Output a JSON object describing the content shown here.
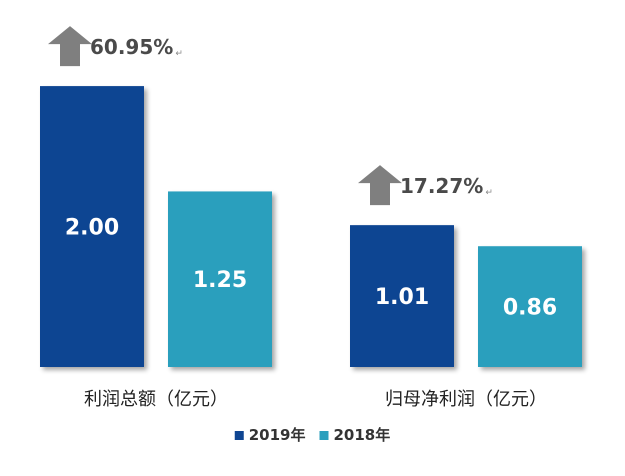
{
  "chart_data": {
    "type": "bar",
    "categories": [
      "利润总额（亿元）",
      "归母净利润（亿元）"
    ],
    "series": [
      {
        "name": "2019年",
        "values": [
          2.0,
          1.01
        ],
        "labels": [
          "2.00",
          "1.01"
        ],
        "color": "#0f4592"
      },
      {
        "name": "2018年",
        "values": [
          1.25,
          0.86
        ],
        "labels": [
          "1.25",
          "0.86"
        ],
        "color": "#2b9fbd"
      }
    ],
    "growth": [
      "60.95%",
      "17.27%"
    ],
    "paragraph_mark": "↵",
    "ylim": [
      0,
      2.2
    ],
    "legend_position": "bottom-center",
    "arrow_color": "#7f7f7f",
    "grid": false
  }
}
